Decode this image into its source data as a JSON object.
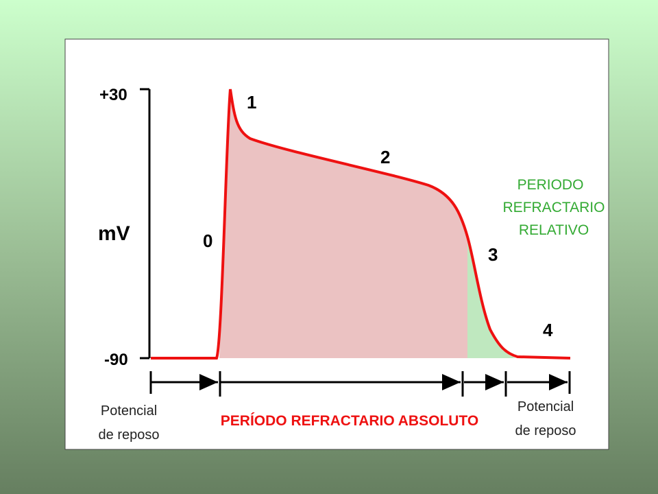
{
  "axis": {
    "top": "+30",
    "bottom": "-90",
    "unit": "mV"
  },
  "phases": [
    "0",
    "1",
    "2",
    "3",
    "4"
  ],
  "relative_period": [
    "PERIODO",
    "REFRACTARIO",
    "RELATIVO"
  ],
  "absolute_period": "PERÍODO REFRACTARIO ABSOLUTO",
  "resting_left": [
    "Potencial",
    "de reposo"
  ],
  "resting_right": [
    "Potencial",
    "de reposo"
  ]
}
